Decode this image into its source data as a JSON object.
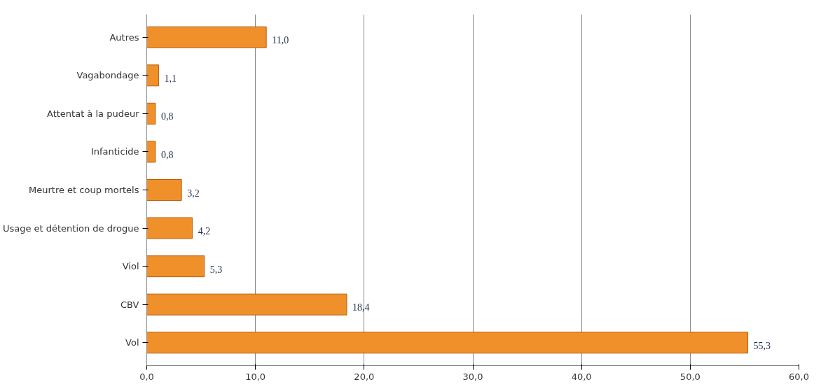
{
  "chart_data": {
    "type": "bar",
    "orientation": "horizontal",
    "categories": [
      "Autres",
      "Vagabondage",
      "Attentat à la pudeur",
      "Infanticide",
      "Meurtre et coup mortels",
      "Usage et détention de drogue",
      "Viol",
      "CBV",
      "Vol"
    ],
    "values": [
      11.0,
      1.1,
      0.8,
      0.8,
      3.2,
      4.2,
      5.3,
      18.4,
      55.3
    ],
    "value_labels": [
      "11,0",
      "1,1",
      "0,8",
      "0,8",
      "3,2",
      "4,2",
      "5,3",
      "18,4",
      "55,3"
    ],
    "color": "#f0902a",
    "xlim": [
      0,
      60
    ],
    "xticks": [
      {
        "value": 0,
        "label": "0,0"
      },
      {
        "value": 10,
        "label": "10,0"
      },
      {
        "value": 20,
        "label": "20,0"
      },
      {
        "value": 30,
        "label": "30,0"
      },
      {
        "value": 40,
        "label": "40,0"
      },
      {
        "value": 50,
        "label": "50,0"
      },
      {
        "value": 60,
        "label": "60,0"
      }
    ],
    "grid": "x"
  }
}
